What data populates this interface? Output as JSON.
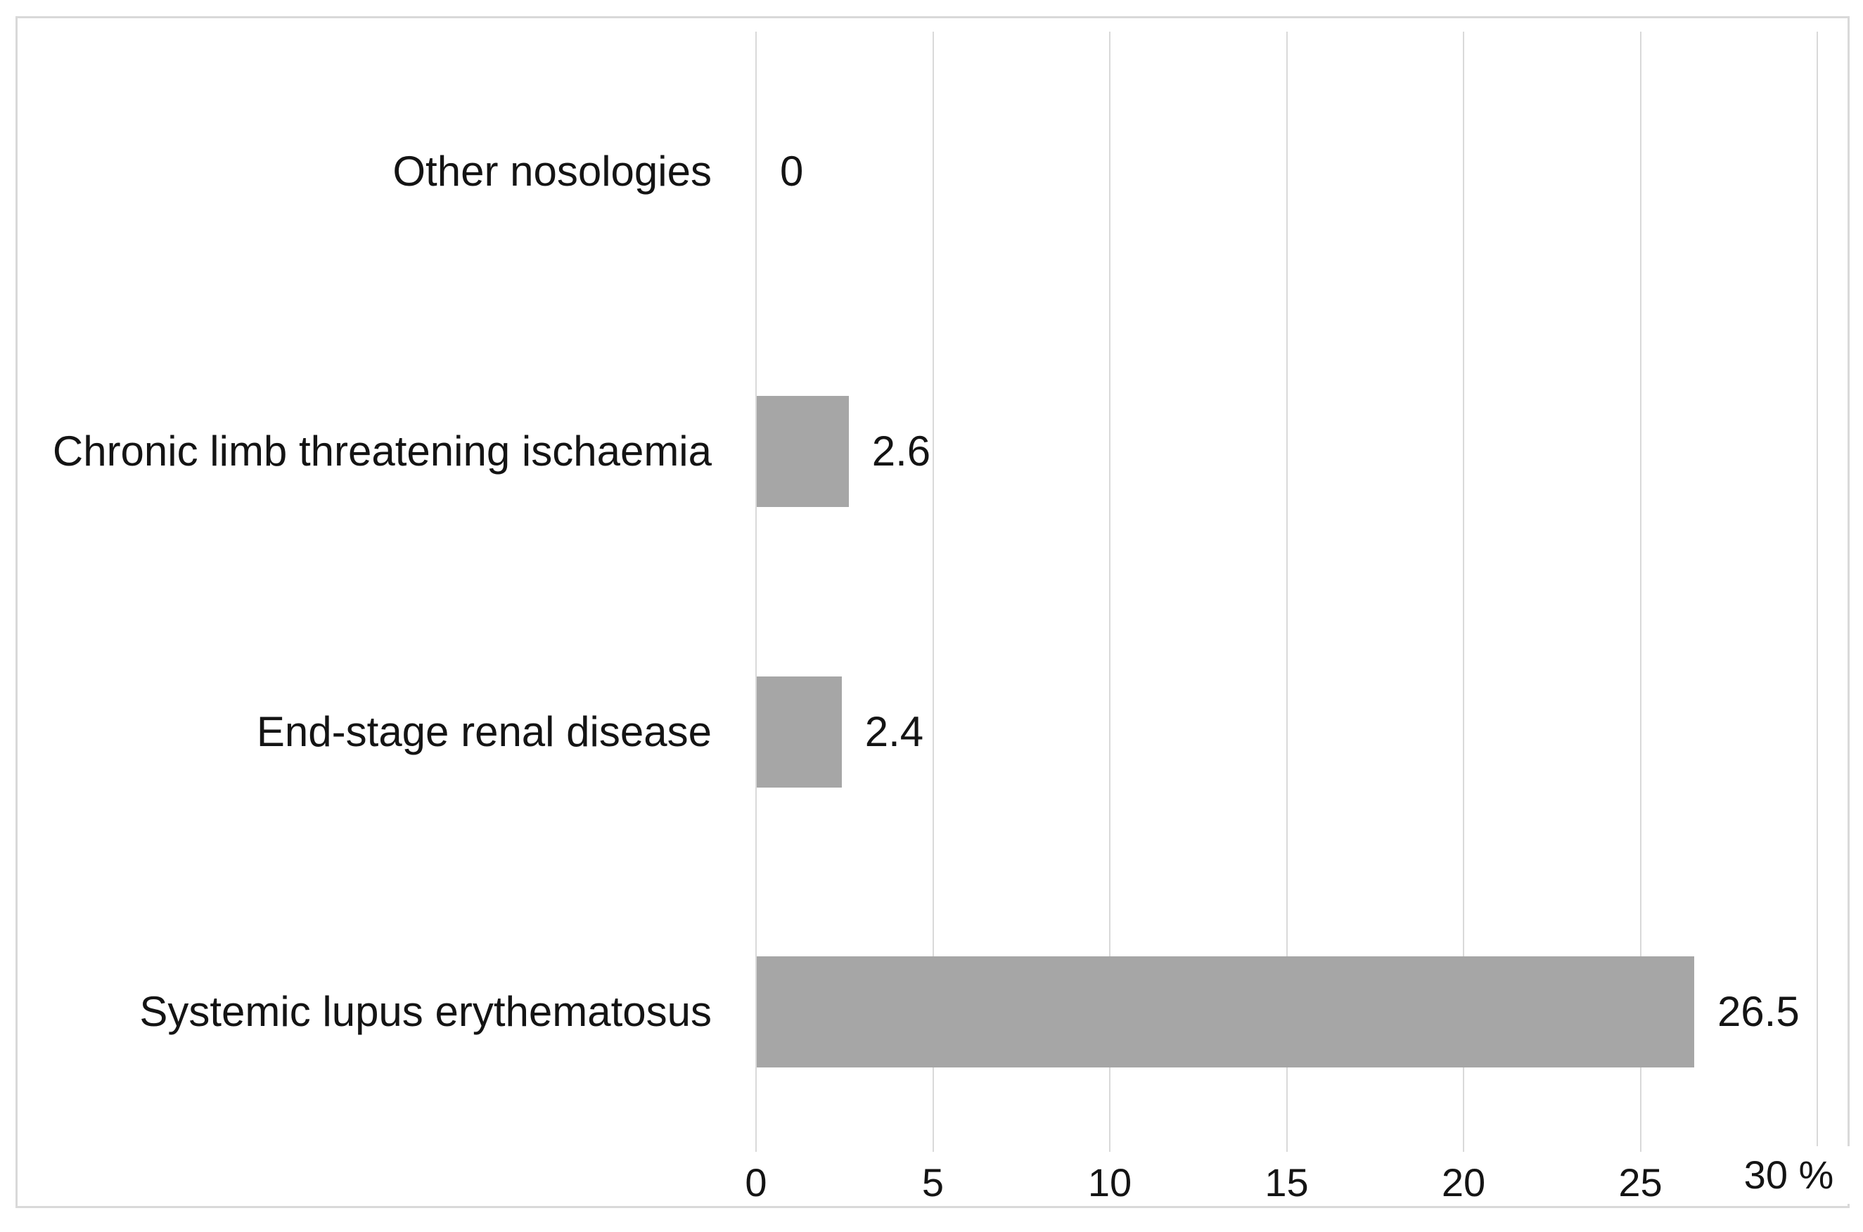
{
  "chart_data": {
    "type": "bar",
    "orientation": "horizontal",
    "title": "",
    "categories": [
      "Other nosologies",
      "Chronic limb threatening ischaemia",
      "End-stage renal disease",
      "Systemic lupus erythematosus"
    ],
    "values": [
      0,
      2.6,
      2.4,
      26.5
    ],
    "value_labels": [
      "0",
      "2.6",
      "2.4",
      "26.5"
    ],
    "x_axis": {
      "min": 0,
      "max": 30,
      "tick_interval": 5,
      "ticks": [
        0,
        5,
        10,
        15,
        20,
        25,
        30
      ],
      "tick_labels": [
        "0",
        "5",
        "10",
        "15",
        "20",
        "25"
      ],
      "unit_label": "%",
      "end_label": "30 %"
    },
    "grid": true,
    "legend": false,
    "colors": {
      "bar": "#a6a6a6",
      "gridline": "#d9d9d9",
      "frame_border": "#d9d9d9",
      "text": "#141414",
      "background": "#ffffff"
    }
  }
}
